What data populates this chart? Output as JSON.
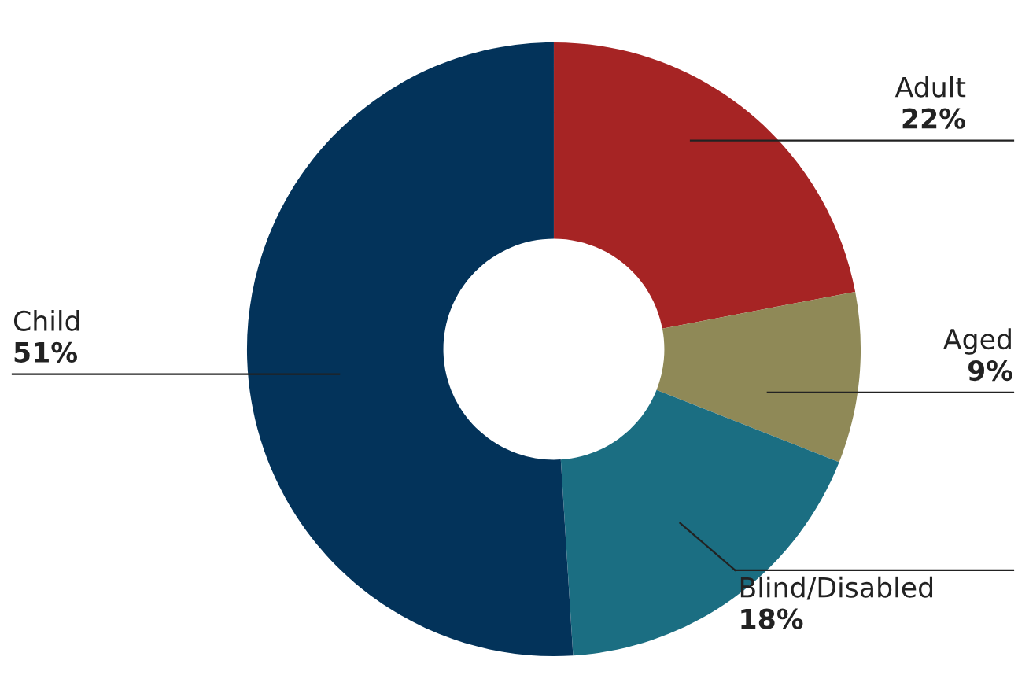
{
  "chart_data": {
    "type": "donut",
    "categories": [
      "Adult",
      "Aged",
      "Blind/Disabled",
      "Child"
    ],
    "values": [
      22,
      9,
      18,
      51
    ],
    "value_labels": [
      "22%",
      "9%",
      "18%",
      "51%"
    ],
    "colors": [
      "#a62424",
      "#8f8957",
      "#1b6e82",
      "#03335a"
    ],
    "legend": false
  }
}
